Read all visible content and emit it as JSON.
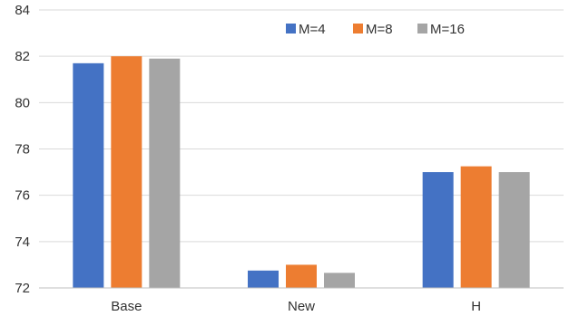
{
  "chart_data": {
    "type": "bar",
    "categories": [
      "Base",
      "New",
      "H"
    ],
    "series": [
      {
        "name": "M=4",
        "values": [
          81.7,
          72.75,
          77.0
        ],
        "color": "#4472c4"
      },
      {
        "name": "M=8",
        "values": [
          82.0,
          73.0,
          77.25
        ],
        "color": "#ed7d31"
      },
      {
        "name": "M=16",
        "values": [
          81.9,
          72.65,
          77.0
        ],
        "color": "#a5a5a5"
      }
    ],
    "ylim": [
      72,
      84
    ],
    "yticks": [
      "72",
      "74",
      "76",
      "78",
      "80",
      "82",
      "84"
    ],
    "grid": true,
    "legend": "top-right"
  }
}
